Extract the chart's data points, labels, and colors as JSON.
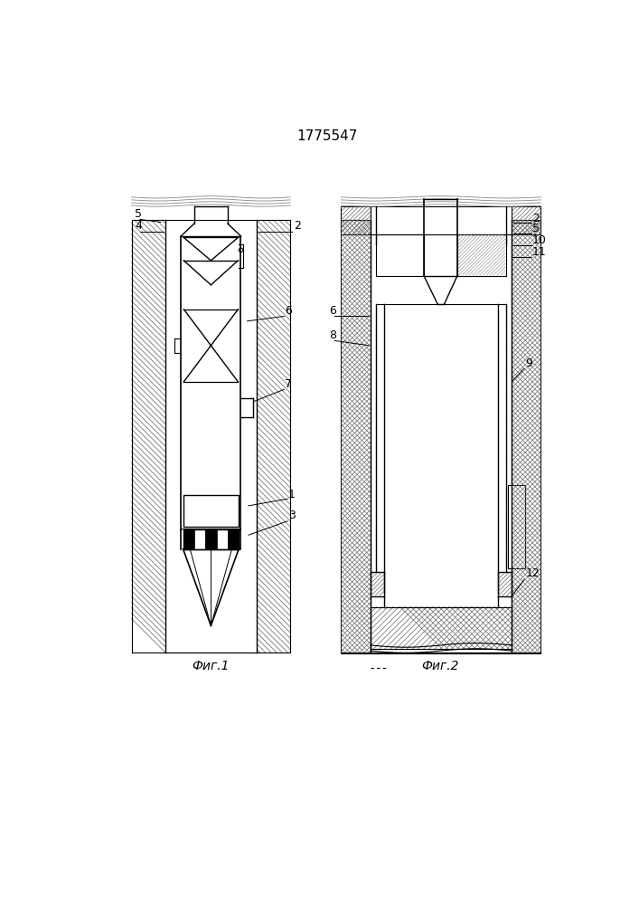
{
  "title": "1775547",
  "fig1_label": "Фиг.1",
  "fig2_label": "Фиг.2",
  "bg_color": "#ffffff",
  "line_color": "#000000"
}
